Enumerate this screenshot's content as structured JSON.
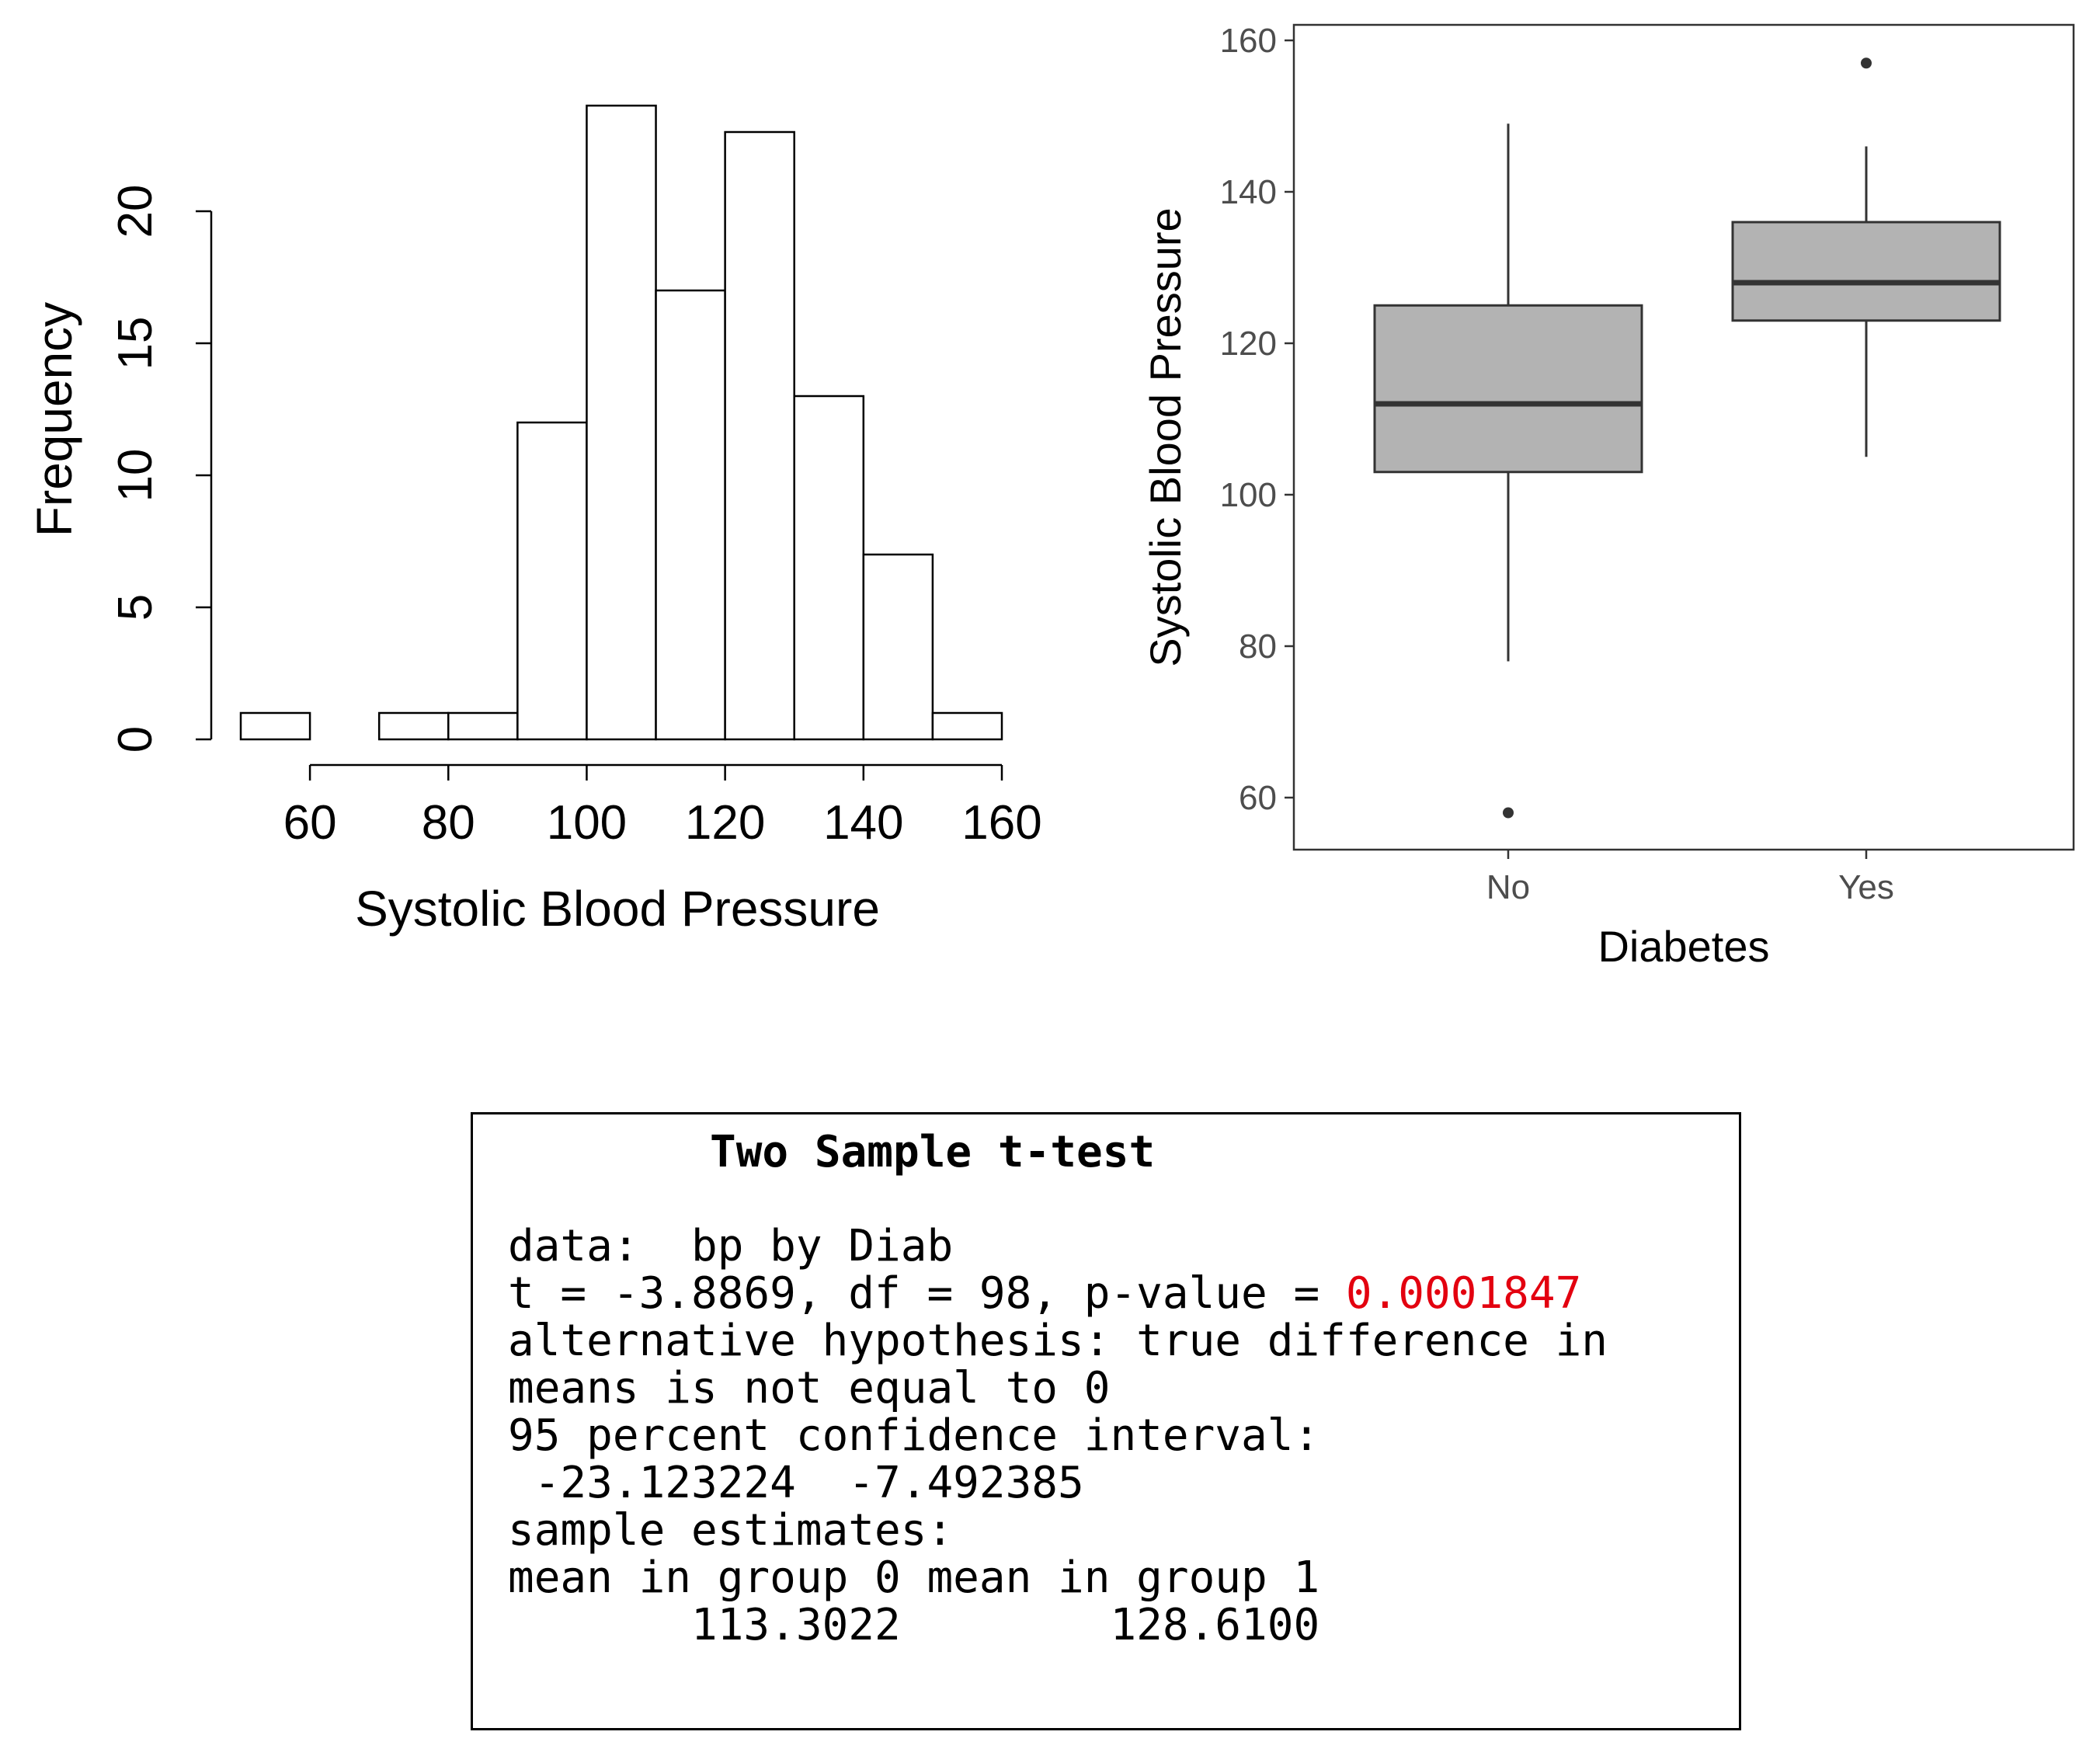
{
  "chart_data": [
    {
      "type": "bar",
      "subtype": "histogram",
      "title": "",
      "xlabel": "Systolic Blood Pressure",
      "ylabel": "Frequency",
      "bins": [
        [
          50,
          60
        ],
        [
          60,
          70
        ],
        [
          70,
          80
        ],
        [
          80,
          90
        ],
        [
          90,
          100
        ],
        [
          100,
          110
        ],
        [
          110,
          120
        ],
        [
          120,
          130
        ],
        [
          130,
          140
        ],
        [
          140,
          150
        ],
        [
          150,
          160
        ]
      ],
      "values": [
        1,
        0,
        1,
        1,
        12,
        24,
        17,
        23,
        13,
        7,
        1
      ],
      "xticks": [
        "60",
        "80",
        "100",
        "120",
        "140",
        "160"
      ],
      "yticks": [
        "0",
        "5",
        "10",
        "15",
        "20"
      ],
      "xlim": [
        50,
        160
      ],
      "ylim": [
        0,
        24
      ]
    },
    {
      "type": "boxplot",
      "title": "",
      "xlabel": "Diabetes",
      "ylabel": "Systolic Blood Pressure",
      "categories": [
        "No",
        "Yes"
      ],
      "boxes": [
        {
          "name": "No",
          "min": 78,
          "q1": 103,
          "median": 112,
          "q3": 125,
          "max": 149,
          "outliers": [
            58
          ]
        },
        {
          "name": "Yes",
          "min": 105,
          "q1": 123,
          "median": 128,
          "q3": 136,
          "max": 146,
          "outliers": [
            157
          ]
        }
      ],
      "yticks": [
        "60",
        "80",
        "100",
        "120",
        "140",
        "160"
      ],
      "ylim": [
        54,
        162
      ],
      "box_color": "#b3b3b3"
    }
  ],
  "ttest": {
    "title": "Two Sample t-test",
    "data_line": "data:  bp by Diab",
    "stat_line": "t = -3.8869, df = 98, p-value = ",
    "p_value": "0.0001847",
    "alt_line1": "alternative hypothesis: true difference in",
    "alt_line2": "means is not equal to 0",
    "ci_label": "95 percent confidence interval:",
    "ci_values": " -23.123224  -7.492385",
    "est_label": "sample estimates:",
    "est_header": "mean in group 0 mean in group 1",
    "est_values": "       113.3022        128.6100",
    "p_color": "#e3000f"
  }
}
